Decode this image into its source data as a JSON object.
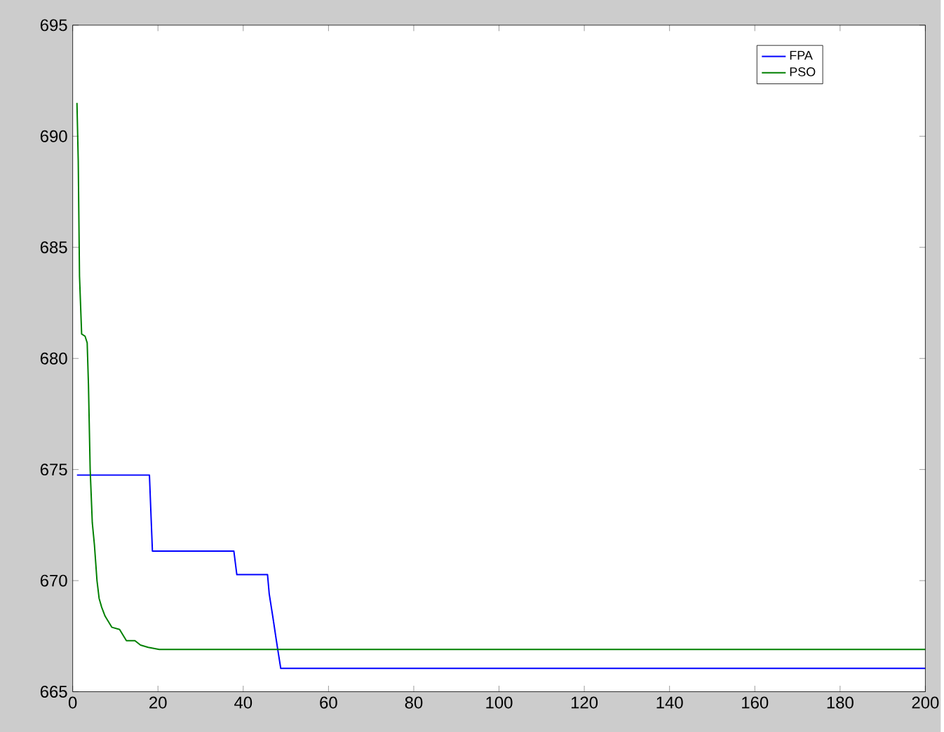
{
  "chart_data": {
    "type": "line",
    "xlim": [
      0,
      200
    ],
    "ylim": [
      665,
      695
    ],
    "xticks": [
      0,
      20,
      40,
      60,
      80,
      100,
      120,
      140,
      160,
      180,
      200
    ],
    "yticks": [
      665,
      670,
      675,
      680,
      685,
      690,
      695
    ],
    "grid": false,
    "legend": "top right",
    "series": [
      {
        "name": "FPA",
        "color": "#0000ff",
        "x": [
          1,
          18,
          18.7,
          37.8,
          38.5,
          45.7,
          46.1,
          47,
          47.7,
          48.1,
          48.8,
          200
        ],
        "values": [
          674.75,
          674.75,
          671.33,
          671.33,
          670.27,
          670.27,
          669.4,
          668.3,
          667.4,
          666.9,
          666.05,
          666.05
        ]
      },
      {
        "name": "PSO",
        "color": "#008000",
        "x": [
          1,
          1.3,
          1.6,
          2.1,
          2.9,
          3.4,
          3.7,
          4.1,
          4.6,
          5.1,
          5.7,
          6.2,
          6.8,
          7.6,
          9.2,
          11,
          12.6,
          14.6,
          15.9,
          17.7,
          20.3,
          200
        ],
        "values": [
          691.5,
          688.9,
          683.7,
          681.1,
          681.0,
          680.7,
          678.8,
          675.0,
          672.6,
          671.6,
          670.0,
          669.2,
          668.8,
          668.4,
          667.9,
          667.8,
          667.3,
          667.3,
          667.1,
          667.0,
          666.9,
          666.9
        ]
      }
    ]
  }
}
